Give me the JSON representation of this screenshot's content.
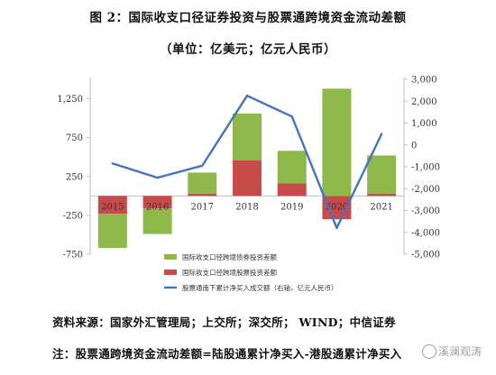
{
  "title": "图 2：国际收支口径证券投资与股票通跨境资金流动差额",
  "subtitle": "（单位：亿美元；亿元人民币）",
  "source": "资料来源：国家外汇管理局；上交所；深交所；  WIND；中信证券",
  "note": "注：股票通跨境资金流动差额=陆股通累计净买入-港股通累计净买入",
  "watermark": {
    "text": "溪澜观涛",
    "icon": "wechat-icon"
  },
  "chart_data": {
    "type": "bar",
    "categories": [
      "2015",
      "2016",
      "2017",
      "2018",
      "2019",
      "2020",
      "2021"
    ],
    "series": [
      {
        "name": "国际收支口径跨境债券投资差额",
        "type": "bar",
        "axis": "left",
        "color": "#8fb84a",
        "values": [
          -440,
          -330,
          270,
          600,
          420,
          1380,
          490
        ]
      },
      {
        "name": "国际收支口径跨境股票投资差额",
        "type": "bar",
        "axis": "left",
        "color": "#c84b4b",
        "values": [
          -230,
          -160,
          30,
          460,
          160,
          -300,
          30
        ]
      },
      {
        "name": "股票通南下累计净买入成交额（右轴，亿元人民币）",
        "type": "line",
        "axis": "right",
        "color": "#4472c4",
        "values": [
          -850,
          -1500,
          -950,
          2250,
          1300,
          -3800,
          500
        ]
      }
    ],
    "y_left": {
      "ticks": [
        -750,
        -250,
        250,
        750,
        1250
      ],
      "ylim": [
        -750,
        1500
      ]
    },
    "y_right": {
      "ticks": [
        -5000,
        -4000,
        -3000,
        -2000,
        -1000,
        0,
        1000,
        2000,
        3000
      ],
      "tick_labels": [
        "-5,000",
        "-4,000",
        "-3,000",
        "-2,000",
        "-1,000",
        "0",
        "1,000",
        "2,000",
        "3,000"
      ],
      "ylim": [
        -5000,
        3000
      ]
    },
    "legend_position": "bottom-center",
    "grid": false
  }
}
